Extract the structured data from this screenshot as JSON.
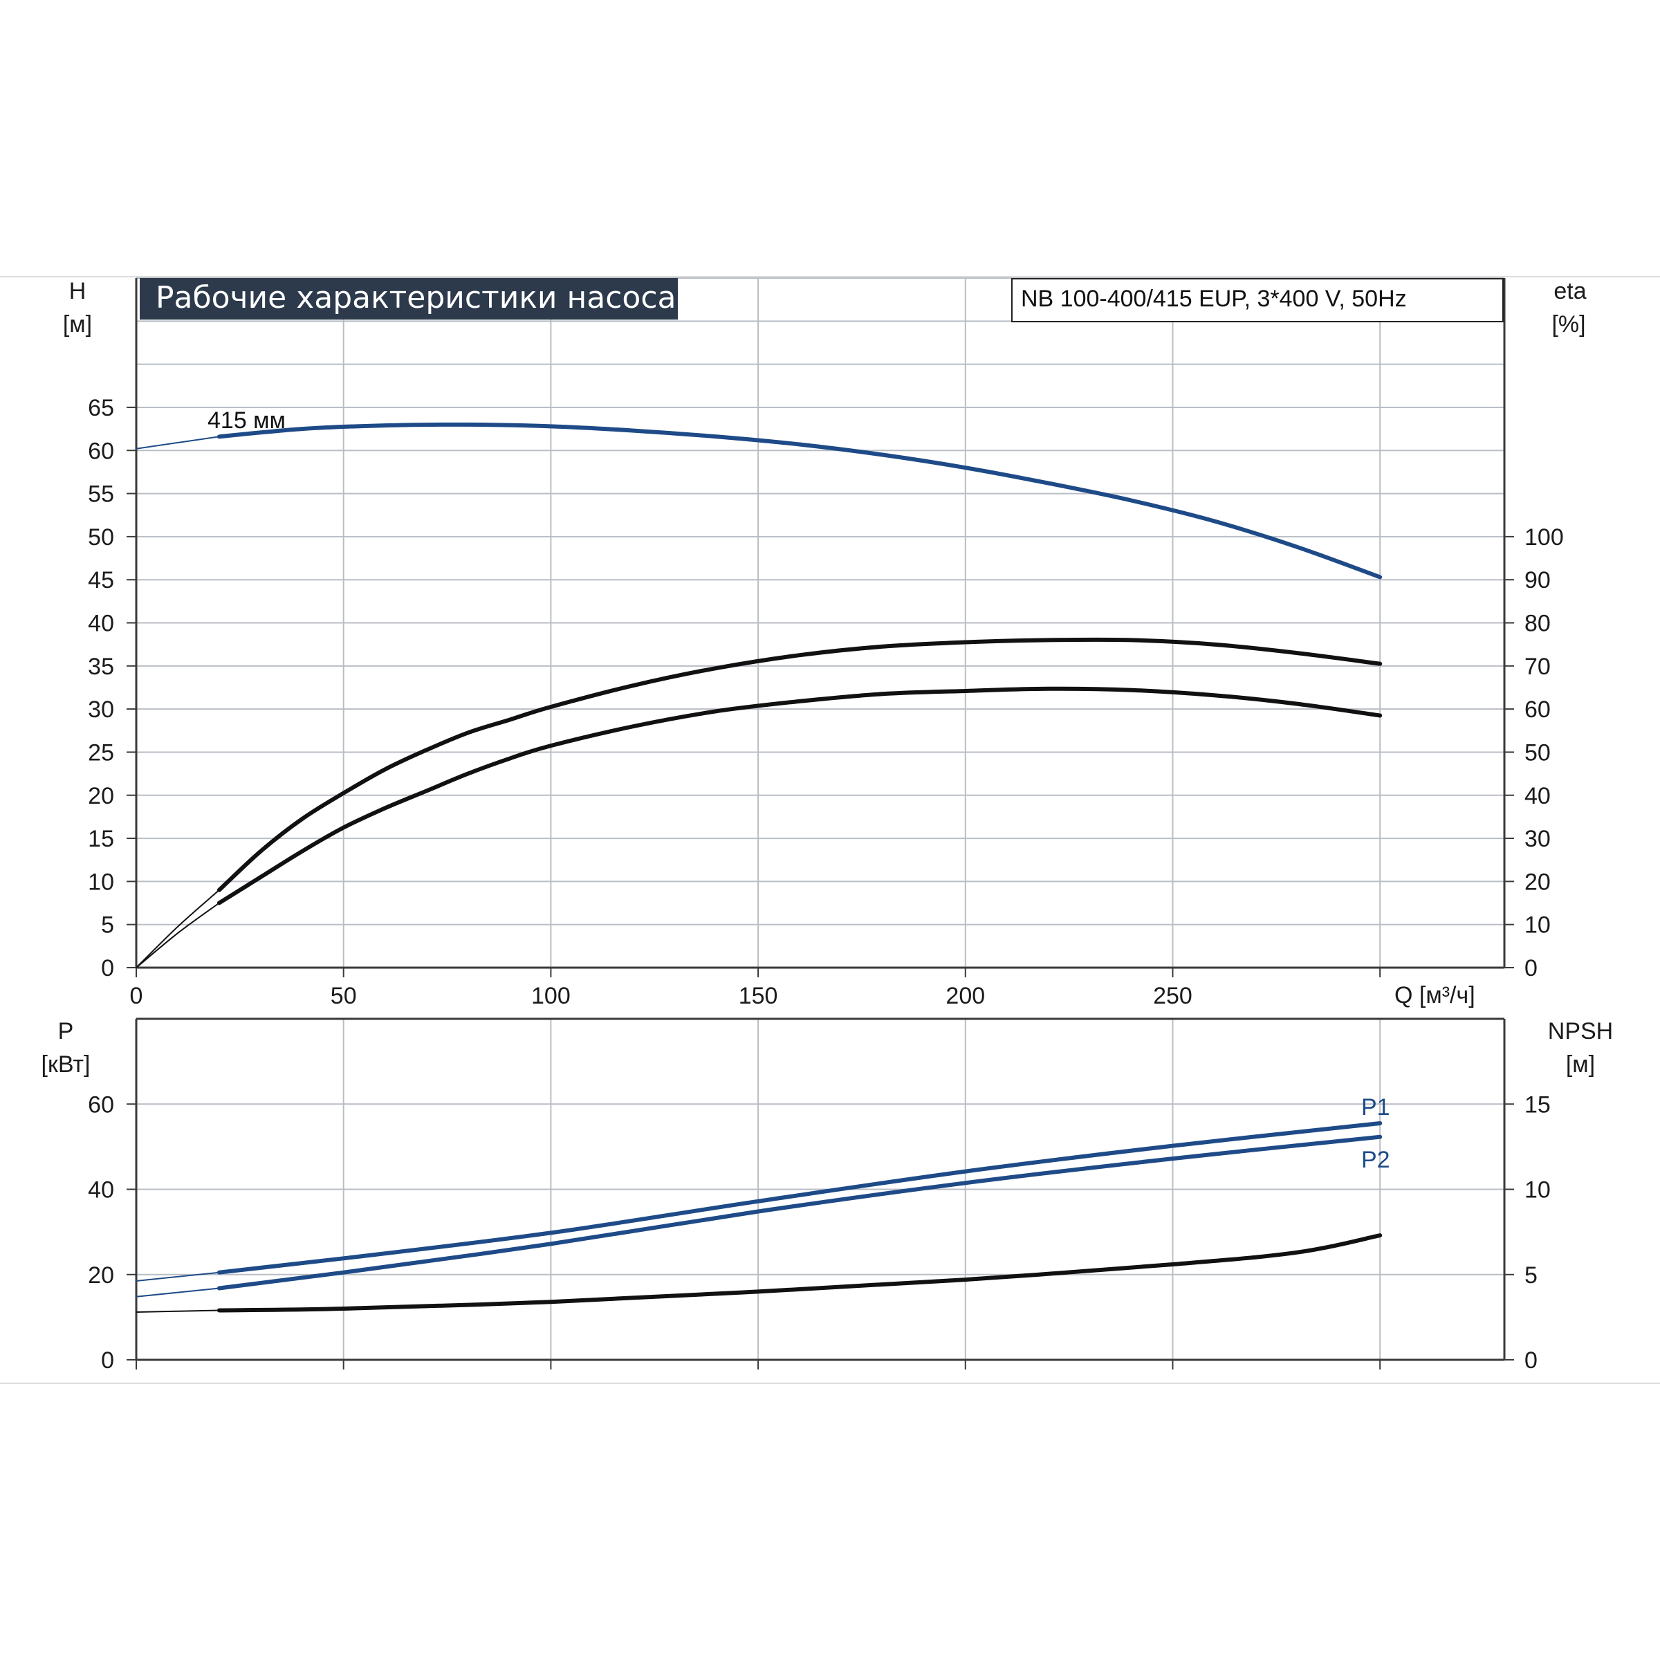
{
  "colors": {
    "grid": "#b9bec6",
    "axis": "#3a3a3a",
    "blue": "#1e4b88",
    "black": "#111111",
    "title_bg": "#2d3a4c",
    "frame_line": "#d8d8d8"
  },
  "title_label": "Рабочие характеристики насоса",
  "model_label": "NB 100-400/415 EUP, 3*400 V, 50Hz",
  "chart_data": [
    {
      "type": "line",
      "x_tick_labels": [
        "0",
        "50",
        "100",
        "150",
        "200",
        "250"
      ],
      "xlabel": "Q [м³/ч]",
      "xlim": [
        0,
        330
      ],
      "y_left_label": "H",
      "y_left_unit": "[м]",
      "y_left_ticks": [
        "0",
        "5",
        "10",
        "15",
        "20",
        "25",
        "30",
        "35",
        "40",
        "45",
        "50",
        "55",
        "60",
        "65"
      ],
      "ylim_left": [
        0,
        80
      ],
      "y_right_label": "eta",
      "y_right_unit": "[%]",
      "y_right_ticks": [
        "0",
        "10",
        "20",
        "30",
        "40",
        "50",
        "60",
        "70",
        "80",
        "90",
        "100"
      ],
      "ylim_right": [
        0,
        160
      ],
      "grid": true,
      "series": [
        {
          "name": "415 мм",
          "axis": "left",
          "color": "blue",
          "x": [
            0,
            20,
            40,
            60,
            80,
            100,
            120,
            140,
            160,
            180,
            200,
            220,
            240,
            260,
            280,
            300
          ],
          "y": [
            60.2,
            61.6,
            62.5,
            62.9,
            63.0,
            62.8,
            62.3,
            61.6,
            60.7,
            59.5,
            58.0,
            56.2,
            54.2,
            51.8,
            48.8,
            45.3
          ]
        },
        {
          "axis": "right",
          "color": "black",
          "x": [
            0,
            10,
            20,
            30,
            40,
            50,
            60,
            70,
            80,
            90,
            100,
            120,
            140,
            160,
            180,
            200,
            220,
            240,
            260,
            280,
            300
          ],
          "y": [
            0,
            8,
            15,
            21,
            27,
            32.5,
            37,
            41,
            45,
            48.5,
            51.5,
            56,
            59.5,
            61.8,
            63.5,
            64.2,
            64.7,
            64.4,
            63.2,
            61.2,
            58.5
          ]
        },
        {
          "axis": "right",
          "color": "black",
          "x": [
            0,
            10,
            20,
            30,
            40,
            50,
            60,
            70,
            80,
            90,
            100,
            120,
            140,
            160,
            180,
            200,
            220,
            240,
            260,
            280,
            300
          ],
          "y": [
            0,
            9.5,
            18,
            27,
            34.5,
            40.5,
            46,
            50.5,
            54.5,
            57.5,
            60.5,
            65.5,
            69.5,
            72.5,
            74.5,
            75.5,
            76,
            76,
            75,
            73,
            70.5
          ]
        }
      ]
    },
    {
      "type": "line",
      "x_tick_labels": [],
      "xlim": [
        0,
        330
      ],
      "y_left_label": "P",
      "y_left_unit": "[кВт]",
      "y_left_ticks": [
        "0",
        "20",
        "40",
        "60"
      ],
      "ylim_left": [
        0,
        80
      ],
      "y_right_label": "NPSH",
      "y_right_unit": "[м]",
      "y_right_ticks": [
        "0",
        "5",
        "10",
        "15"
      ],
      "ylim_right": [
        0,
        20
      ],
      "grid": true,
      "series": [
        {
          "name": "P1",
          "axis": "left",
          "color": "blue",
          "x": [
            0,
            20,
            50,
            100,
            150,
            200,
            250,
            300
          ],
          "y": [
            18.5,
            20.5,
            23.8,
            29.8,
            37.2,
            44.2,
            50.2,
            55.5
          ]
        },
        {
          "name": "P2",
          "axis": "left",
          "color": "blue",
          "x": [
            0,
            20,
            50,
            100,
            150,
            200,
            250,
            300
          ],
          "y": [
            14.8,
            16.8,
            20.5,
            27.2,
            34.8,
            41.5,
            47.2,
            52.3
          ]
        },
        {
          "axis": "right",
          "color": "black",
          "x": [
            0,
            20,
            50,
            100,
            150,
            200,
            250,
            280,
            300
          ],
          "y": [
            2.8,
            2.9,
            3.0,
            3.4,
            4.0,
            4.7,
            5.6,
            6.3,
            7.3
          ]
        }
      ]
    }
  ]
}
